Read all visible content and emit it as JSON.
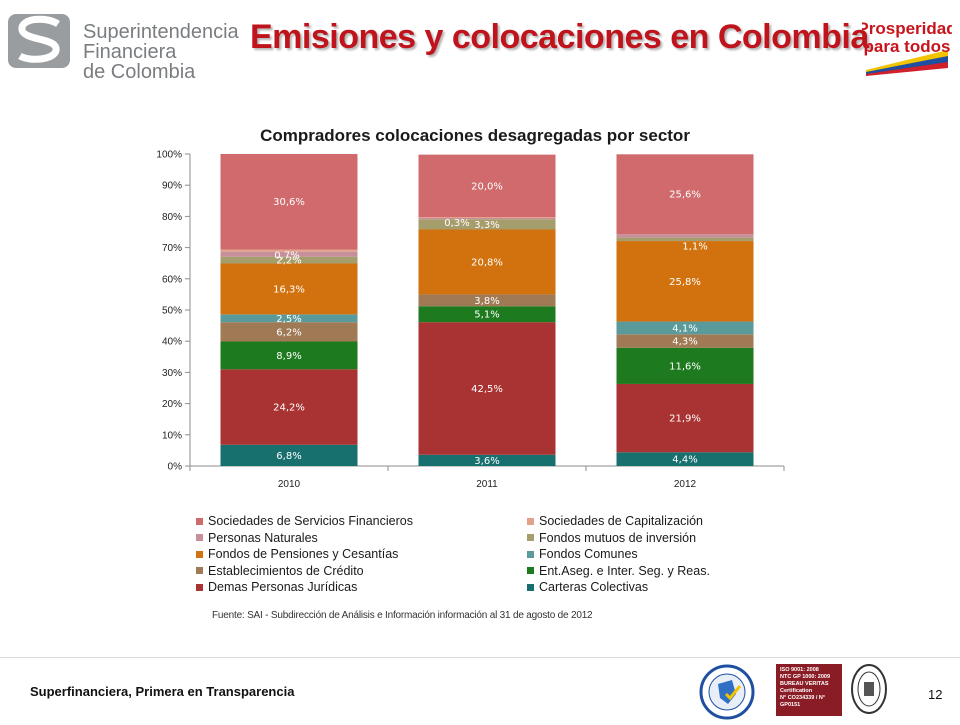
{
  "header": {
    "logo_lines": [
      "Superintendencia",
      "Financiera",
      "de Colombia"
    ],
    "title": "Emisiones y colocaciones en Colombia",
    "right_logo_lines": [
      "Prosperidad",
      "para todos"
    ]
  },
  "chart_data": {
    "type": "bar",
    "stacked": true,
    "title": "Compradores colocaciones desagregadas por sector",
    "categories": [
      "2010",
      "2011",
      "2012"
    ],
    "y_ticks": [
      "0%",
      "10%",
      "20%",
      "30%",
      "40%",
      "50%",
      "60%",
      "70%",
      "80%",
      "90%",
      "100%"
    ],
    "ylim": [
      0,
      100
    ],
    "legend_position": "bottom",
    "series": [
      {
        "name": "Carteras Colectivas",
        "color": "#17706e",
        "values": [
          6.8,
          3.6,
          4.4
        ],
        "labels": [
          "6,8%",
          "3,6%",
          "4,4%"
        ]
      },
      {
        "name": "Demas Personas Jurídicas",
        "color": "#a93233",
        "values": [
          24.2,
          42.5,
          21.9
        ],
        "labels": [
          "24,2%",
          "42,5%",
          "21,9%"
        ]
      },
      {
        "name": "Ent.Aseg. e Inter. Seg. y Reas.",
        "color": "#1e7a1e",
        "values": [
          8.9,
          5.1,
          11.6
        ],
        "labels": [
          "8,9%",
          "5,1%",
          "11,6%"
        ]
      },
      {
        "name": "Establecimientos de Crédito",
        "color": "#a07a55",
        "values": [
          6.2,
          3.8,
          4.3
        ],
        "labels": [
          "6,2%",
          "3,8%",
          "4,3%"
        ]
      },
      {
        "name": "Fondos Comunes",
        "color": "#5a9a9a",
        "values": [
          2.5,
          0.0,
          4.1
        ],
        "labels": [
          "2,5%",
          "",
          "4,1%"
        ]
      },
      {
        "name": "Fondos de Pensiones y Cesantías",
        "color": "#d2720f",
        "values": [
          16.3,
          20.8,
          25.8
        ],
        "labels": [
          "16,3%",
          "20,8%",
          "25,8%"
        ]
      },
      {
        "name": "Fondos mutuos de inversión",
        "color": "#a69d6c",
        "values": [
          2.2,
          3.3,
          1.1
        ],
        "labels": [
          "2,2%",
          "3,3%",
          "1,1%"
        ]
      },
      {
        "name": "Personas Naturales",
        "color": "#c78f9a",
        "values": [
          1.6,
          0.4,
          1.1
        ],
        "labels": [
          "1,6%",
          "0,4%",
          "1,1%"
        ]
      },
      {
        "name": "Sociedades de Capitalización",
        "color": "#e3a08a",
        "values": [
          0.7,
          0.3,
          0.0
        ],
        "labels": [
          "0,7%",
          "0,3%",
          ""
        ]
      },
      {
        "name": "Sociedades de Servicios Financieros",
        "color": "#d06a6d",
        "values": [
          30.6,
          20.0,
          25.6
        ],
        "labels": [
          "30,6%",
          "20,0%",
          "25,6%"
        ]
      }
    ]
  },
  "legend": [
    {
      "label": "Sociedades de Servicios Financieros",
      "color": "#d06a6d"
    },
    {
      "label": "Sociedades de Capitalización",
      "color": "#e3a08a"
    },
    {
      "label": "Personas Naturales",
      "color": "#c78f9a"
    },
    {
      "label": "Fondos mutuos de inversión",
      "color": "#a69d6c"
    },
    {
      "label": "Fondos de Pensiones y Cesantías",
      "color": "#d2720f"
    },
    {
      "label": "Fondos Comunes",
      "color": "#5a9a9a"
    },
    {
      "label": "Establecimientos de Crédito",
      "color": "#a07a55"
    },
    {
      "label": "Ent.Aseg. e Inter. Seg. y Reas.",
      "color": "#1e7a1e"
    },
    {
      "label": "Demas Personas Jurídicas",
      "color": "#a93233"
    },
    {
      "label": "Carteras Colectivas",
      "color": "#17706e"
    }
  ],
  "source": "Fuente: SAI - Subdirección de Análisis e Información información al 31 de agosto de 2012",
  "footer": {
    "text": "Superfinanciera, Primera en Transparencia",
    "page_number": "12",
    "cert_lines": [
      "ISO 9001: 2008",
      "NTC GP 1000: 2009",
      "BUREAU VERITAS",
      "Certification",
      "N° CO234339 / N° GP0151"
    ]
  }
}
